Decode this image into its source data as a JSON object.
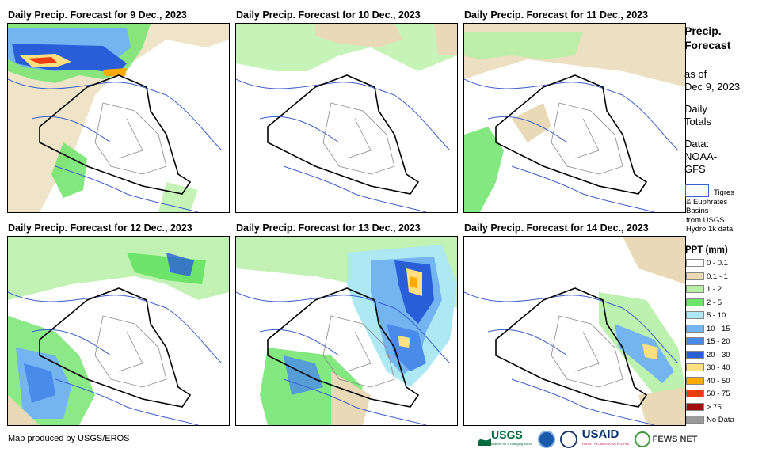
{
  "panels": [
    {
      "title": "Daily Precip. Forecast for 9 Dec., 2023"
    },
    {
      "title": "Daily Precip. Forecast for 10 Dec., 2023"
    },
    {
      "title": "Daily Precip. Forecast for 11 Dec., 2023"
    },
    {
      "title": "Daily Precip. Forecast for 12 Dec., 2023"
    },
    {
      "title": "Daily Precip. Forecast for 13 Dec., 2023"
    },
    {
      "title": "Daily Precip. Forecast for 14 Dec., 2023"
    }
  ],
  "sidebar": {
    "title_line1": "Precip.",
    "title_line2": "Forecast",
    "asof_line1": "as of",
    "asof_line2": "Dec 9, 2023",
    "daily_line1": "Daily",
    "daily_line2": "Totals",
    "data_line1": "Data:",
    "data_line2": "NOAA-",
    "data_line3": "GFS",
    "basin_line1": "Tigres",
    "basin_line2": "& Euphrates",
    "basin_line3": "Basins",
    "basin_line4": "from USGS",
    "basin_line5": "Hydro 1k data"
  },
  "legend": {
    "title": "PPT (mm)",
    "items": [
      {
        "label": "0 - 0.1",
        "color": "#ffffff"
      },
      {
        "label": "0.1 - 1",
        "color": "#ead9b6"
      },
      {
        "label": "1 - 2",
        "color": "#b6f0a6"
      },
      {
        "label": "2 - 5",
        "color": "#6ee46a"
      },
      {
        "label": "5 - 10",
        "color": "#aee8f2"
      },
      {
        "label": "10 - 15",
        "color": "#74b4f0"
      },
      {
        "label": "15 - 20",
        "color": "#4a8ae8"
      },
      {
        "label": "20 - 30",
        "color": "#2a5ed8"
      },
      {
        "label": "30 - 40",
        "color": "#ffe080"
      },
      {
        "label": "40 - 50",
        "color": "#ffaa00"
      },
      {
        "label": "50 - 75",
        "color": "#f03c10"
      },
      {
        "label": "> 75",
        "color": "#a01010"
      },
      {
        "label": "No Data",
        "color": "#9a9a9a"
      }
    ]
  },
  "footer": {
    "credit": "Map produced by USGS/EROS"
  },
  "logos": {
    "usgs": "USGS",
    "usgs_tagline": "science for a changing world",
    "usaid": "USAID",
    "usaid_tagline": "FROM THE AMERICAN PEOPLE",
    "fewsnet": "FEWS NET"
  },
  "colors": {
    "border": "#000000",
    "rivers": "#3a5fcd",
    "provinces": "#8a8a8a",
    "highlight_brown": "#ead9b6"
  }
}
